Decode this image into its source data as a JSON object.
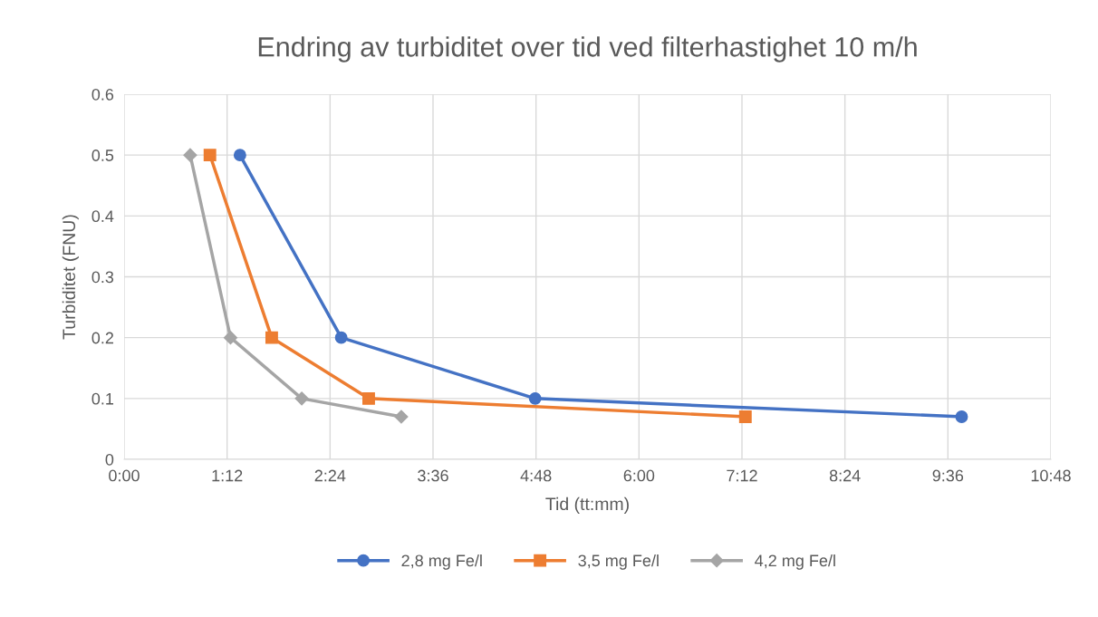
{
  "chart_data": {
    "type": "line",
    "title": "Endring av turbiditet over tid ved filterhastighet 10 m/h",
    "xlabel": "Tid (tt:mm)",
    "ylabel": "Turbiditet (FNU)",
    "series": [
      {
        "name": "2,8 mg Fe/l",
        "color": "#4472c4",
        "marker": "circle",
        "x": [
          1.35,
          2.53,
          4.79,
          9.76
        ],
        "values": [
          0.5,
          0.2,
          0.1,
          0.07
        ]
      },
      {
        "name": "3,5 mg Fe/l",
        "color": "#ed7d31",
        "marker": "square",
        "x": [
          1.0,
          1.72,
          2.85,
          7.24
        ],
        "values": [
          0.5,
          0.2,
          0.1,
          0.07
        ]
      },
      {
        "name": "4,2 mg Fe/l",
        "color": "#a5a5a5",
        "marker": "diamond",
        "x": [
          0.77,
          1.24,
          2.07,
          3.23
        ],
        "values": [
          0.5,
          0.2,
          0.1,
          0.07
        ]
      }
    ],
    "xlim": [
      0,
      10.8
    ],
    "xticks": [
      {
        "value": 0,
        "label": "0:00"
      },
      {
        "value": 1.2,
        "label": "1:12"
      },
      {
        "value": 2.4,
        "label": "2:24"
      },
      {
        "value": 3.6,
        "label": "3:36"
      },
      {
        "value": 4.8,
        "label": "4:48"
      },
      {
        "value": 6.0,
        "label": "6:00"
      },
      {
        "value": 7.2,
        "label": "7:12"
      },
      {
        "value": 8.4,
        "label": "8:24"
      },
      {
        "value": 9.6,
        "label": "9:36"
      },
      {
        "value": 10.8,
        "label": "10:48"
      }
    ],
    "ylim": [
      0,
      0.6
    ],
    "yticks": [
      {
        "value": 0,
        "label": "0"
      },
      {
        "value": 0.1,
        "label": "0.1"
      },
      {
        "value": 0.2,
        "label": "0.2"
      },
      {
        "value": 0.3,
        "label": "0.3"
      },
      {
        "value": 0.4,
        "label": "0.4"
      },
      {
        "value": 0.5,
        "label": "0.5"
      },
      {
        "value": 0.6,
        "label": "0.6"
      }
    ],
    "grid": true,
    "legend": "bottom",
    "line_style": "solid"
  }
}
